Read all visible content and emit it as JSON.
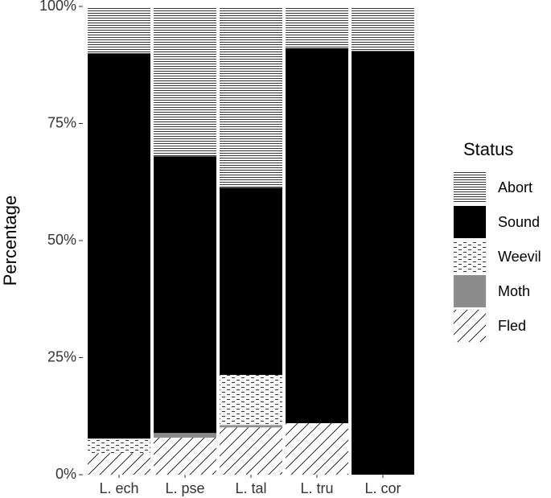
{
  "chart_data": {
    "type": "stacked-bar",
    "y_label": "Percentage",
    "legend_title": "Status",
    "legend": "right",
    "categories": [
      "L. ech",
      "L. pse",
      "L. tal",
      "L. tru",
      "L. cor"
    ],
    "series": [
      {
        "name": "Abort",
        "color": "#000000",
        "pattern": "horizontal",
        "values": [
          10,
          32,
          38.7,
          8.9,
          9.5
        ]
      },
      {
        "name": "Sound",
        "color": "#000000",
        "pattern": "solid",
        "values": [
          82.3,
          59.1,
          40,
          80.1,
          90.5
        ]
      },
      {
        "name": "Weevil",
        "color": "#000000",
        "pattern": "dashed",
        "values": [
          3.1,
          0,
          10.7,
          0,
          0
        ]
      },
      {
        "name": "Moth",
        "color": "#8c8c8c",
        "pattern": "solid",
        "values": [
          0,
          1,
          0.5,
          0,
          0
        ]
      },
      {
        "name": "Fled",
        "color": "#000000",
        "pattern": "diagonal",
        "values": [
          4.6,
          7.9,
          10.1,
          11,
          0
        ]
      }
    ],
    "ylim": [
      0,
      100
    ],
    "yticks": [
      {
        "value": 0,
        "label": "0%"
      },
      {
        "value": 25,
        "label": "25%"
      },
      {
        "value": 50,
        "label": "50%"
      },
      {
        "value": 75,
        "label": "75%"
      },
      {
        "value": 100,
        "label": "100%"
      }
    ]
  }
}
